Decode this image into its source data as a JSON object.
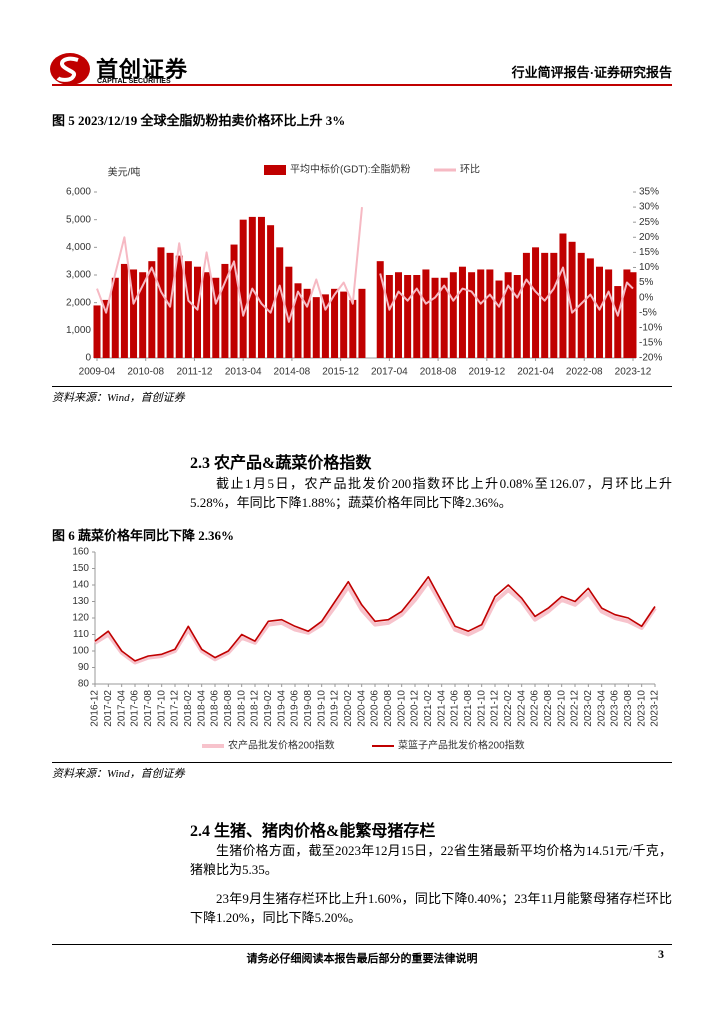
{
  "header": {
    "logo_cn": "首创证券",
    "logo_en": "CAPITAL SECURITIES",
    "report_type": "行业简评报告·证券研究报告"
  },
  "chart_data": [
    {
      "type": "bar",
      "title": "图 5 2023/12/19 全球全脂奶粉拍卖价格环比上升 3%",
      "y_label": "美元/吨",
      "source": "资料来源：Wind，首创证券",
      "legend": "top",
      "x": [
        "2009-04",
        "2009-07",
        "2009-10",
        "2010-01",
        "2010-04",
        "2010-07",
        "2010-10",
        "2011-01",
        "2011-04",
        "2011-07",
        "2011-10",
        "2012-01",
        "2012-04",
        "2012-07",
        "2012-10",
        "2013-01",
        "2013-04",
        "2013-07",
        "2013-10",
        "2014-01",
        "2014-04",
        "2014-07",
        "2014-10",
        "2015-01",
        "2015-04",
        "2015-07",
        "2015-10",
        "2016-01",
        "2016-04",
        "2016-07",
        "2016-10",
        "2017-01",
        "2017-04",
        "2017-07",
        "2017-10",
        "2018-01",
        "2018-04",
        "2018-07",
        "2018-10",
        "2019-01",
        "2019-04",
        "2019-07",
        "2019-10",
        "2020-01",
        "2020-04",
        "2020-07",
        "2020-10",
        "2021-01",
        "2021-04",
        "2021-07",
        "2021-10",
        "2022-01",
        "2022-04",
        "2022-07",
        "2022-10",
        "2023-01",
        "2023-04",
        "2023-07",
        "2023-10",
        "2023-12"
      ],
      "xlim": [
        "2009-04",
        "2023-12"
      ],
      "xticks": [
        "2009-04",
        "2010-08",
        "2011-12",
        "2013-04",
        "2014-08",
        "2015-12",
        "2017-04",
        "2018-08",
        "2019-12",
        "2021-04",
        "2022-08",
        "2023-12"
      ],
      "ylim": [
        0,
        6000
      ],
      "yticks": [
        0,
        {
          "value": 1000,
          "label": "1,000"
        },
        {
          "value": 2000,
          "label": "2,000"
        },
        {
          "value": 3000,
          "label": "3,000"
        },
        {
          "value": 4000,
          "label": "4,000"
        },
        {
          "value": 5000,
          "label": "5,000"
        },
        {
          "value": 6000,
          "label": "6,000"
        }
      ],
      "y2lim": [
        -20,
        35
      ],
      "y2ticks": [
        {
          "value": -20,
          "label": "-20%"
        },
        {
          "value": -15,
          "label": "-15%"
        },
        {
          "value": -10,
          "label": "-10%"
        },
        {
          "value": -5,
          "label": "-5%"
        },
        {
          "value": 0,
          "label": "0%"
        },
        {
          "value": 5,
          "label": "5%"
        },
        {
          "value": 10,
          "label": "10%"
        },
        {
          "value": 15,
          "label": "15%"
        },
        {
          "value": 20,
          "label": "20%"
        },
        {
          "value": 25,
          "label": "25%"
        },
        {
          "value": 30,
          "label": "30%"
        },
        {
          "value": 35,
          "label": "35%"
        }
      ],
      "series": [
        {
          "name": "平均中标价(GDT):全脂奶粉",
          "color": "#c00000",
          "values": [
            1900,
            2100,
            2900,
            3400,
            3200,
            3100,
            3500,
            4000,
            3800,
            3700,
            3500,
            3300,
            3100,
            2900,
            3400,
            4100,
            5000,
            5100,
            5100,
            4800,
            4000,
            3300,
            2700,
            2500,
            2200,
            2300,
            2500,
            2400,
            2100,
            2500,
            null,
            3500,
            3000,
            3100,
            3000,
            3000,
            3200,
            2900,
            2900,
            3100,
            3300,
            3100,
            3200,
            3200,
            2800,
            3100,
            3000,
            3800,
            4000,
            3800,
            3800,
            4500,
            4200,
            3800,
            3600,
            3300,
            3200,
            2600,
            3200,
            3100
          ]
        },
        {
          "name": "环比",
          "color": "#f6b9c3",
          "type": "line",
          "axis": "y2",
          "values": [
            3,
            -5,
            8,
            20,
            -2,
            4,
            10,
            2,
            -3,
            18,
            -1,
            -4,
            15,
            -2,
            5,
            12,
            -6,
            3,
            -2,
            -5,
            4,
            -8,
            2,
            -3,
            6,
            -4,
            1,
            5,
            -2,
            30,
            null,
            8,
            -4,
            2,
            -1,
            3,
            -2,
            0,
            4,
            -1,
            3,
            2,
            -2,
            1,
            -3,
            4,
            0,
            6,
            2,
            -1,
            3,
            10,
            -5,
            -2,
            1,
            -4,
            2,
            -6,
            5,
            3
          ]
        }
      ]
    },
    {
      "type": "line",
      "title": "图 6 蔬菜价格年同比下降 2.36%",
      "source": "资料来源：Wind，首创证券",
      "legend": "bottom",
      "x": [
        "2016-12",
        "2017-02",
        "2017-04",
        "2017-06",
        "2017-08",
        "2017-10",
        "2017-12",
        "2018-02",
        "2018-04",
        "2018-06",
        "2018-08",
        "2018-10",
        "2018-12",
        "2019-02",
        "2019-04",
        "2019-06",
        "2019-08",
        "2019-10",
        "2019-12",
        "2020-02",
        "2020-04",
        "2020-06",
        "2020-08",
        "2020-10",
        "2020-12",
        "2021-02",
        "2021-04",
        "2021-06",
        "2021-08",
        "2021-10",
        "2021-12",
        "2022-02",
        "2022-04",
        "2022-06",
        "2022-08",
        "2022-10",
        "2022-12",
        "2023-02",
        "2023-04",
        "2023-06",
        "2023-08",
        "2023-10",
        "2023-12"
      ],
      "xlim": [
        "2016-12",
        "2023-12"
      ],
      "xticks": [
        "2016-12",
        "2017-02",
        "2017-04",
        "2017-06",
        "2017-08",
        "2017-10",
        "2017-12",
        "2018-02",
        "2018-04",
        "2018-06",
        "2018-08",
        "2018-10",
        "2018-12",
        "2019-02",
        "2019-04",
        "2019-06",
        "2019-08",
        "2019-10",
        "2019-12",
        "2020-02",
        "2020-04",
        "2020-06",
        "2020-08",
        "2020-10",
        "2020-12",
        "2021-02",
        "2021-04",
        "2021-06",
        "2021-08",
        "2021-10",
        "2021-12",
        "2022-02",
        "2022-04",
        "2022-06",
        "2022-08",
        "2022-10",
        "2022-12",
        "2023-02",
        "2023-04",
        "2023-06",
        "2023-08",
        "2023-10",
        "2023-12"
      ],
      "ylim": [
        80,
        160
      ],
      "yticks": [
        80,
        90,
        100,
        110,
        120,
        130,
        140,
        150,
        160
      ],
      "series": [
        {
          "name": "农产品批发价格200指数",
          "color": "#f7c3cc",
          "width": 4,
          "values": [
            105,
            110,
            99,
            93,
            96,
            97,
            100,
            113,
            100,
            95,
            99,
            108,
            105,
            116,
            117,
            113,
            111,
            116,
            127,
            139,
            125,
            116,
            117,
            122,
            131,
            142,
            128,
            113,
            110,
            114,
            130,
            137,
            130,
            119,
            124,
            131,
            128,
            135,
            124,
            120,
            118,
            114,
            126
          ]
        },
        {
          "name": "菜篮子产品批发价格200指数",
          "color": "#c00000",
          "width": 1.6,
          "values": [
            106,
            112,
            100,
            94,
            97,
            98,
            101,
            115,
            101,
            96,
            100,
            110,
            106,
            118,
            119,
            115,
            112,
            118,
            130,
            142,
            128,
            118,
            119,
            124,
            134,
            145,
            130,
            115,
            112,
            116,
            133,
            140,
            132,
            121,
            126,
            133,
            130,
            138,
            126,
            122,
            120,
            115,
            127
          ]
        }
      ]
    }
  ],
  "sections": [
    {
      "heading": "2.3 农产品&蔬菜价格指数",
      "paragraphs": [
        "截止1月5日，农产品批发价200指数环比上升0.08%至126.07，月环比上升5.28%，年同比下降1.88%；蔬菜价格年同比下降2.36%。"
      ]
    },
    {
      "heading": "2.4 生猪、猪肉价格&能繁母猪存栏",
      "paragraphs": [
        "生猪价格方面，截至2023年12月15日，22省生猪最新平均价格为14.51元/千克，猪粮比为5.35。",
        "23年9月生猪存栏环比上升1.60%，同比下降0.40%；23年11月能繁母猪存栏环比下降1.20%，同比下降5.20%。"
      ]
    }
  ],
  "footer": {
    "notice": "请务必仔细阅读本报告最后部分的重要法律说明",
    "page": "3"
  }
}
